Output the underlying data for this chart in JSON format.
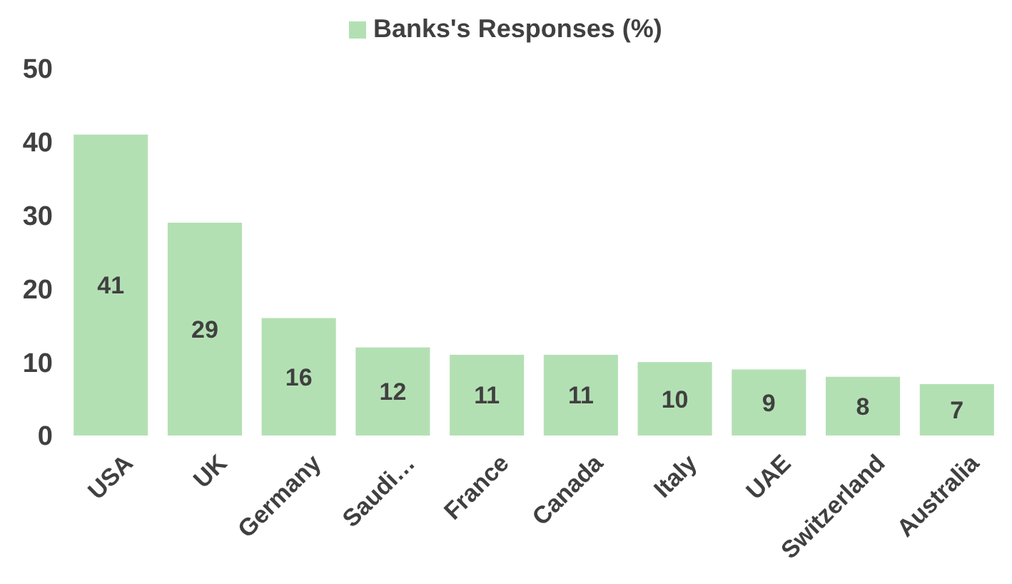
{
  "chart_data": {
    "type": "bar",
    "categories": [
      "USA",
      "UK",
      "Germany",
      "Saudi…",
      "France",
      "Canada",
      "Italy",
      "UAE",
      "Switzerland",
      "Australia"
    ],
    "series": [
      {
        "name": "Banks's Responses (%)",
        "color": "#b3e0b3",
        "values": [
          41,
          29,
          16,
          12,
          11,
          11,
          10,
          9,
          8,
          7
        ]
      }
    ],
    "ylim": [
      0,
      50
    ],
    "yticks": [
      0,
      10,
      20,
      30,
      40,
      50
    ],
    "data_labels": true,
    "legend": "top",
    "grid": false
  }
}
